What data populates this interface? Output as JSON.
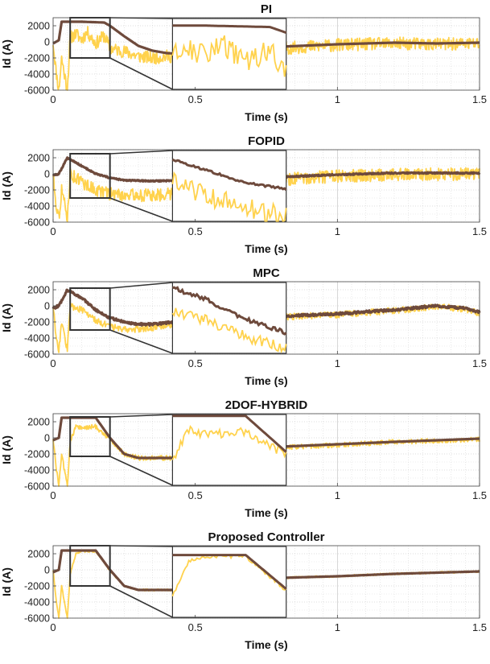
{
  "figure": {
    "colors": {
      "reference": "#6e4a3c",
      "response": "#ffd24d",
      "zoom_frame": "#333333",
      "grid": "#d9d9d9",
      "axes": "#444444"
    }
  },
  "chart_data": [
    {
      "type": "line",
      "title": "PI",
      "xlabel": "Time (s)",
      "ylabel": "Id (A)",
      "xlim": [
        0,
        1.5
      ],
      "ylim": [
        -6000,
        3000
      ],
      "xticks": [
        0,
        0.5,
        1,
        1.5
      ],
      "xtick_labels": [
        "0",
        "0.5",
        "1",
        "1.5"
      ],
      "yticks": [
        2000,
        0,
        -2000,
        -4000,
        -6000
      ],
      "ytick_labels": [
        "2000",
        "0",
        "-2000",
        "-4000",
        "-6000"
      ],
      "grid": true,
      "series": [
        {
          "role": "reference",
          "x": [
            0,
            0.02,
            0.03,
            0.05,
            0.1,
            0.18,
            0.2,
            0.25,
            0.3,
            0.35,
            0.4,
            0.45,
            0.55,
            0.8,
            1.0,
            1.2,
            1.35,
            1.5
          ],
          "y": [
            -200,
            200,
            2500,
            2500,
            2500,
            2400,
            2000,
            700,
            -500,
            -1100,
            -1400,
            -1500,
            -1500,
            -600,
            -300,
            -100,
            -200,
            -100
          ]
        },
        {
          "role": "response",
          "x": [
            0,
            0.01,
            0.02,
            0.03,
            0.05,
            0.06,
            0.08,
            0.1,
            0.12,
            0.15,
            0.18,
            0.2,
            0.25,
            0.3,
            0.35,
            0.4,
            0.45,
            0.55,
            0.8,
            1.0,
            1.2,
            1.35,
            1.5
          ],
          "y": [
            0,
            -3500,
            -6000,
            -2000,
            -6000,
            500,
            1000,
            300,
            1200,
            -200,
            800,
            -800,
            -1200,
            -1800,
            -2000,
            -1800,
            -1800,
            -900,
            -800,
            -400,
            -200,
            -300,
            -200
          ],
          "noise": 800
        }
      ],
      "zoom": {
        "window": {
          "x": [
            0.06,
            0.2
          ],
          "y": [
            -2000,
            3000
          ]
        },
        "inset": {
          "x": [
            0.42,
            0.82
          ]
        }
      }
    },
    {
      "type": "line",
      "title": "FOPID",
      "xlabel": "Time (s)",
      "ylabel": "Id (A)",
      "xlim": [
        0,
        1.5
      ],
      "ylim": [
        -6000,
        3000
      ],
      "xticks": [
        0,
        0.5,
        1,
        1.5
      ],
      "xtick_labels": [
        "0",
        "0.5",
        "1",
        "1.5"
      ],
      "yticks": [
        2000,
        0,
        -2000,
        -4000,
        -6000
      ],
      "ytick_labels": [
        "2000",
        "0",
        "-2000",
        "-4000",
        "-6000"
      ],
      "grid": true,
      "series": [
        {
          "role": "reference",
          "x": [
            0,
            0.02,
            0.05,
            0.1,
            0.15,
            0.2,
            0.25,
            0.35,
            0.45,
            0.55,
            0.8,
            1.0,
            1.2,
            1.5
          ],
          "y": [
            -200,
            0,
            2000,
            1000,
            0,
            -500,
            -800,
            -900,
            -800,
            -700,
            -400,
            -100,
            100,
            100
          ],
          "noise": 80
        },
        {
          "role": "response",
          "x": [
            0,
            0.01,
            0.02,
            0.03,
            0.05,
            0.06,
            0.1,
            0.15,
            0.2,
            0.25,
            0.35,
            0.45,
            0.55,
            0.8,
            1.0,
            1.2,
            1.5
          ],
          "y": [
            0,
            -3500,
            -5500,
            -2000,
            -5500,
            0,
            -1000,
            -2000,
            -2500,
            -2600,
            -2700,
            -2300,
            -1200,
            -700,
            -300,
            -100,
            0
          ],
          "noise": 800
        }
      ],
      "zoom": {
        "window": {
          "x": [
            0.06,
            0.2
          ],
          "y": [
            -3000,
            2500
          ]
        },
        "inset": {
          "x": [
            0.42,
            0.82
          ]
        }
      }
    },
    {
      "type": "line",
      "title": "MPC",
      "xlabel": "Time (s)",
      "ylabel": "Id (A)",
      "xlim": [
        0,
        1.5
      ],
      "ylim": [
        -6000,
        3000
      ],
      "xticks": [
        0,
        0.5,
        1,
        1.5
      ],
      "xtick_labels": [
        "0",
        "0.5",
        "1",
        "1.5"
      ],
      "yticks": [
        2000,
        0,
        -2000,
        -4000,
        -6000
      ],
      "ytick_labels": [
        "2000",
        "0",
        "-2000",
        "-4000",
        "-6000"
      ],
      "grid": true,
      "series": [
        {
          "role": "reference",
          "x": [
            0,
            0.02,
            0.05,
            0.1,
            0.15,
            0.2,
            0.25,
            0.3,
            0.35,
            0.4,
            0.45,
            0.55,
            0.8,
            1.0,
            1.2,
            1.35,
            1.45,
            1.5
          ],
          "y": [
            -300,
            0,
            2000,
            1000,
            -500,
            -1500,
            -2000,
            -2300,
            -2300,
            -2100,
            -1900,
            -1700,
            -1300,
            -1000,
            -500,
            0,
            -300,
            -800
          ],
          "noise": 150
        },
        {
          "role": "response",
          "x": [
            0,
            0.01,
            0.02,
            0.03,
            0.05,
            0.06,
            0.1,
            0.15,
            0.2,
            0.25,
            0.3,
            0.35,
            0.4,
            0.45,
            0.55,
            0.8,
            1.0,
            1.2,
            1.35,
            1.45,
            1.5
          ],
          "y": [
            0,
            -3500,
            -5500,
            -2000,
            -5500,
            0,
            -500,
            -1800,
            -2600,
            -2900,
            -2900,
            -2700,
            -2400,
            -2200,
            -1800,
            -1400,
            -1100,
            -600,
            -100,
            -400,
            -900
          ],
          "noise": 400
        }
      ],
      "zoom": {
        "window": {
          "x": [
            0.06,
            0.2
          ],
          "y": [
            -3000,
            2200
          ]
        },
        "inset": {
          "x": [
            0.42,
            0.82
          ]
        }
      }
    },
    {
      "type": "line",
      "title": "2DOF-HYBRID",
      "xlabel": "Time (s)",
      "ylabel": "Id (A)",
      "xlim": [
        0,
        1.5
      ],
      "ylim": [
        -6000,
        3000
      ],
      "xticks": [
        0,
        0.5,
        1,
        1.5
      ],
      "xtick_labels": [
        "0",
        "0.5",
        "1",
        "1.5"
      ],
      "yticks": [
        2000,
        0,
        -2000,
        -4000,
        -6000
      ],
      "ytick_labels": [
        "2000",
        "0",
        "-2000",
        "-4000",
        "-6000"
      ],
      "grid": true,
      "series": [
        {
          "role": "reference",
          "x": [
            0,
            0.02,
            0.03,
            0.05,
            0.15,
            0.2,
            0.25,
            0.3,
            0.45,
            0.55,
            0.8,
            1.0,
            1.2,
            1.5
          ],
          "y": [
            -300,
            0,
            2500,
            2500,
            2500,
            0,
            -2000,
            -2500,
            -2500,
            -1500,
            -1100,
            -800,
            -500,
            -100
          ]
        },
        {
          "role": "response",
          "x": [
            0,
            0.01,
            0.02,
            0.03,
            0.05,
            0.06,
            0.08,
            0.1,
            0.15,
            0.2,
            0.25,
            0.3,
            0.45,
            0.55,
            0.8,
            1.0,
            1.2,
            1.5
          ],
          "y": [
            0,
            -3500,
            -6000,
            -2000,
            -6000,
            -500,
            1500,
            1200,
            1400,
            -200,
            -2000,
            -2500,
            -2500,
            -1600,
            -1200,
            -900,
            -500,
            -200
          ],
          "noise": 300
        }
      ],
      "zoom": {
        "window": {
          "x": [
            0.06,
            0.2
          ],
          "y": [
            -2300,
            2600
          ]
        },
        "inset": {
          "x": [
            0.42,
            0.82
          ]
        }
      }
    },
    {
      "type": "line",
      "title": "Proposed Controller",
      "xlabel": "Time (s)",
      "ylabel": "Id (A)",
      "xlim": [
        0,
        1.5
      ],
      "ylim": [
        -6000,
        3000
      ],
      "xticks": [
        0,
        0.5,
        1,
        1.5
      ],
      "xtick_labels": [
        "0",
        "0.5",
        "1",
        "1.5"
      ],
      "yticks": [
        2000,
        0,
        -2000,
        -4000,
        -6000
      ],
      "ytick_labels": [
        "2000",
        "0",
        "-2000",
        "-4000",
        "-6000"
      ],
      "grid": true,
      "series": [
        {
          "role": "reference",
          "x": [
            0,
            0.02,
            0.03,
            0.05,
            0.15,
            0.2,
            0.25,
            0.3,
            0.45,
            0.55,
            0.8,
            1.0,
            1.2,
            1.5
          ],
          "y": [
            -300,
            0,
            2400,
            2400,
            2400,
            0,
            -2000,
            -2500,
            -2500,
            -1500,
            -1000,
            -800,
            -500,
            -200
          ]
        },
        {
          "role": "response",
          "x": [
            0,
            0.01,
            0.02,
            0.03,
            0.05,
            0.06,
            0.08,
            0.1,
            0.15,
            0.2,
            0.25,
            0.3,
            0.45,
            0.55,
            0.8,
            1.0,
            1.2,
            1.5
          ],
          "y": [
            0,
            -3500,
            -6000,
            -2000,
            -6000,
            -500,
            2000,
            2300,
            2300,
            -100,
            -2000,
            -2500,
            -2500,
            -1600,
            -1000,
            -800,
            -500,
            -200
          ],
          "noise": 120
        }
      ],
      "zoom": {
        "window": {
          "x": [
            0.06,
            0.2
          ],
          "y": [
            -2000,
            3000
          ]
        },
        "inset": {
          "x": [
            0.42,
            0.82
          ]
        }
      }
    }
  ]
}
